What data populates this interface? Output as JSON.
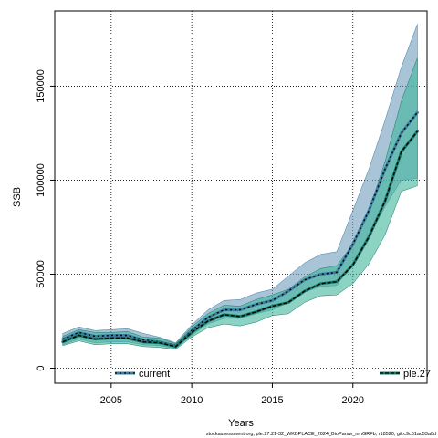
{
  "chart_data": {
    "type": "line",
    "title": "",
    "xlabel": "Years",
    "ylabel": "SSB",
    "xlim": [
      2001.5,
      2024.6
    ],
    "ylim": [
      -8000,
      190000
    ],
    "x_ticks": [
      2005,
      2010,
      2015,
      2020
    ],
    "y_ticks": [
      0,
      50000,
      100000,
      150000
    ],
    "grid": true,
    "x": [
      2002,
      2003,
      2004,
      2005,
      2006,
      2007,
      2008,
      2009,
      2010,
      2011,
      2012,
      2013,
      2014,
      2015,
      2016,
      2017,
      2018,
      2019,
      2020,
      2021,
      2022,
      2023,
      2024
    ],
    "series": [
      {
        "name": "current",
        "color": "#3b7ea1",
        "fill": "#6f9bbd",
        "values": [
          15500,
          19000,
          17000,
          17500,
          17500,
          15000,
          14000,
          12000,
          20000,
          27000,
          31000,
          31000,
          34000,
          36000,
          41000,
          47000,
          50000,
          51000,
          66000,
          84000,
          106000,
          125000,
          136000
        ],
        "lower": [
          12500,
          15500,
          13500,
          14000,
          14000,
          12500,
          12000,
          10500,
          17500,
          23500,
          26500,
          26500,
          29000,
          31000,
          35000,
          40500,
          43500,
          44000,
          56000,
          70000,
          86000,
          100000,
          101000
        ],
        "upper": [
          18500,
          22000,
          20000,
          20500,
          21000,
          18500,
          16500,
          13500,
          23000,
          31000,
          36000,
          36500,
          40000,
          42000,
          49000,
          56000,
          60500,
          62000,
          84000,
          106000,
          132000,
          160000,
          183000
        ]
      },
      {
        "name": "ple.27",
        "color": "#1a7a6a",
        "fill": "#3fb59b",
        "values": [
          14000,
          17500,
          15500,
          16000,
          16000,
          14000,
          13500,
          11500,
          19000,
          25000,
          28500,
          27500,
          30000,
          33000,
          35000,
          41000,
          45000,
          46000,
          55000,
          70000,
          89000,
          115000,
          126000
        ],
        "lower": [
          12000,
          14500,
          12500,
          13000,
          13000,
          11500,
          11000,
          10000,
          16500,
          21500,
          23500,
          22500,
          24500,
          28000,
          29000,
          35000,
          38500,
          39000,
          45000,
          55500,
          71000,
          94000,
          97000
        ],
        "upper": [
          17000,
          20500,
          19000,
          19000,
          19500,
          16500,
          16000,
          13000,
          22000,
          29000,
          33500,
          33000,
          36500,
          39000,
          42000,
          48500,
          53000,
          54500,
          66000,
          84000,
          110000,
          142000,
          165000
        ]
      }
    ],
    "caption": "stockassessment.org, ple.27.21-32_WKBPLACE_2024_BioParsw_nmGRFb, r18520, git:c9c61ac53a0d"
  }
}
